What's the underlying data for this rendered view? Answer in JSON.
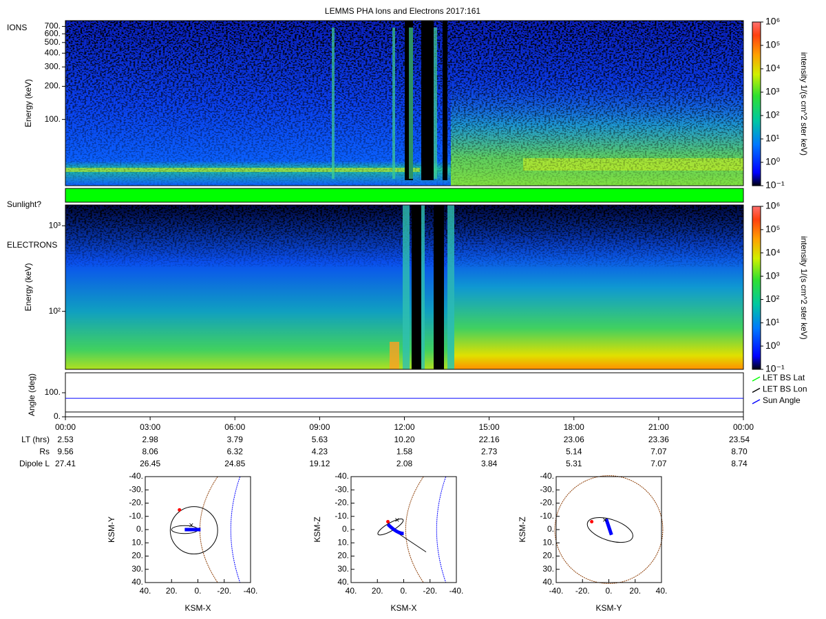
{
  "title": "LEMMS PHA Ions and Electrons  2017:161",
  "time_ticks": [
    "00:00",
    "03:00",
    "06:00",
    "09:00",
    "12:00",
    "15:00",
    "18:00",
    "21:00",
    "00:00"
  ],
  "sunlight": {
    "label": "Sunlight?",
    "color": "#00ff00"
  },
  "colorbar": {
    "label": "intensity 1/(s cm^2 ster keV)",
    "lim": [
      0.1,
      1000000
    ],
    "ticks": [
      {
        "value": 0.1,
        "label": "10⁻¹"
      },
      {
        "value": 1,
        "label": "10⁰"
      },
      {
        "value": 10,
        "label": "10¹"
      },
      {
        "value": 100,
        "label": "10²"
      },
      {
        "value": 1000,
        "label": "10³"
      },
      {
        "value": 10000,
        "label": "10⁴"
      },
      {
        "value": 100000,
        "label": "10⁵"
      },
      {
        "value": 1000000,
        "label": "10⁶"
      }
    ]
  },
  "ephemeris": {
    "rows": [
      {
        "label": "LT (hrs)",
        "values": [
          "2.53",
          "2.98",
          "3.79",
          "5.63",
          "10.20",
          "22.16",
          "23.06",
          "23.36",
          "23.54"
        ]
      },
      {
        "label": "Rs",
        "values": [
          "9.56",
          "8.06",
          "6.32",
          "4.23",
          "1.58",
          "2.73",
          "5.14",
          "7.07",
          "8.70"
        ]
      },
      {
        "label": "Dipole L",
        "values": [
          "27.41",
          "26.45",
          "24.85",
          "19.12",
          "2.08",
          "3.84",
          "5.31",
          "7.07",
          "8.74"
        ]
      }
    ]
  },
  "chart_data": [
    {
      "type": "spectrogram",
      "label": "IONS",
      "ylabel": "Energy (keV)",
      "log_y": true,
      "ylim": [
        25,
        790
      ],
      "yticks": [
        {
          "value": 100,
          "label": "100."
        },
        {
          "value": 200,
          "label": "200."
        },
        {
          "value": 300,
          "label": "300."
        },
        {
          "value": 400,
          "label": "400."
        },
        {
          "value": 500,
          "label": "500."
        },
        {
          "value": 600,
          "label": "600."
        },
        {
          "value": 700,
          "label": "700."
        }
      ]
    },
    {
      "type": "spectrogram",
      "label": "ELECTRONS",
      "ylabel": "Energy (keV)",
      "log_y": true,
      "ylim": [
        21,
        1750
      ],
      "yticks": [
        {
          "value": 100,
          "label": "10²"
        },
        {
          "value": 1000,
          "label": "10³"
        }
      ]
    },
    {
      "type": "line",
      "ylabel": "Angle (deg)",
      "ylim": [
        0,
        183
      ],
      "yticks": [
        {
          "value": 0,
          "label": "0."
        },
        {
          "value": 100,
          "label": "100."
        }
      ],
      "series": [
        {
          "name": "LET BS Lat",
          "color": "#00ff00",
          "values": [
            null,
            null,
            null,
            null,
            null,
            null,
            null,
            null,
            null
          ]
        },
        {
          "name": "LET BS Lon",
          "color": "#000000",
          "values": [
            20,
            20,
            20,
            20,
            20,
            20,
            20,
            20,
            20
          ]
        },
        {
          "name": "Sun Angle",
          "color": "#0000ff",
          "values": [
            77,
            77,
            77,
            77,
            77,
            77,
            77,
            77,
            77
          ]
        }
      ]
    },
    {
      "type": "orbit",
      "xlabel": "KSM-X",
      "ylabel": "KSM-Y",
      "xlim": [
        40,
        -40
      ],
      "ylim": [
        -40,
        40
      ],
      "xticks": [
        {
          "value": 40,
          "label": "40."
        },
        {
          "value": 20,
          "label": "20."
        },
        {
          "value": 0,
          "label": "0."
        },
        {
          "value": -20,
          "label": "-20."
        },
        {
          "value": -40,
          "label": "-40."
        }
      ],
      "yticks": [
        {
          "value": -40,
          "label": "-40."
        },
        {
          "value": -30,
          "label": "-30."
        },
        {
          "value": -20,
          "label": "-20."
        },
        {
          "value": -10,
          "label": "-10."
        },
        {
          "value": 0,
          "label": "0."
        },
        {
          "value": 10,
          "label": "10."
        },
        {
          "value": 20,
          "label": "20."
        },
        {
          "value": 30,
          "label": "30."
        },
        {
          "value": 40,
          "label": "40."
        }
      ]
    },
    {
      "type": "orbit",
      "xlabel": "KSM-X",
      "ylabel": "KSM-Z",
      "xlim": [
        40,
        -40
      ],
      "ylim": [
        -40,
        40
      ],
      "xticks": [
        {
          "value": 40,
          "label": "40."
        },
        {
          "value": 20,
          "label": "20."
        },
        {
          "value": 0,
          "label": "0."
        },
        {
          "value": -20,
          "label": "-20."
        },
        {
          "value": -40,
          "label": "-40."
        }
      ],
      "yticks": [
        {
          "value": -40,
          "label": "-40."
        },
        {
          "value": -30,
          "label": "-30."
        },
        {
          "value": -20,
          "label": "-20."
        },
        {
          "value": -10,
          "label": "-10."
        },
        {
          "value": 0,
          "label": "0."
        },
        {
          "value": 10,
          "label": "10."
        },
        {
          "value": 20,
          "label": "20."
        },
        {
          "value": 30,
          "label": "30."
        },
        {
          "value": 40,
          "label": "40."
        }
      ]
    },
    {
      "type": "orbit",
      "xlabel": "KSM-Y",
      "ylabel": "KSM-Z",
      "xlim": [
        -40,
        40
      ],
      "ylim": [
        -40,
        40
      ],
      "xticks": [
        {
          "value": -40,
          "label": "-40."
        },
        {
          "value": -20,
          "label": "-20."
        },
        {
          "value": 0,
          "label": "0."
        },
        {
          "value": 20,
          "label": "20."
        },
        {
          "value": 40,
          "label": "40."
        }
      ],
      "yticks": [
        {
          "value": -40,
          "label": "-40."
        },
        {
          "value": -30,
          "label": "-30."
        },
        {
          "value": -20,
          "label": "-20."
        },
        {
          "value": -10,
          "label": "-10."
        },
        {
          "value": 0,
          "label": "0."
        },
        {
          "value": 10,
          "label": "10."
        },
        {
          "value": 20,
          "label": "20."
        },
        {
          "value": 30,
          "label": "30."
        },
        {
          "value": 40,
          "label": "40."
        }
      ]
    }
  ]
}
